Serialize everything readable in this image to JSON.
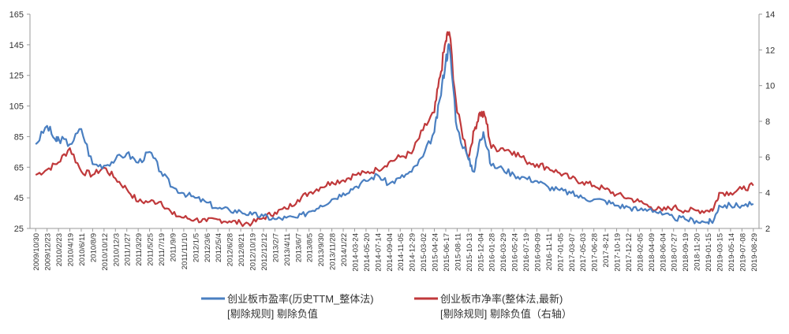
{
  "chart_data": {
    "type": "line",
    "title": "",
    "xlabel": "",
    "ylabel": "",
    "grid": false,
    "legend_position": "bottom",
    "ylim_left": [
      25,
      165
    ],
    "yticks_left": [
      25,
      45,
      65,
      85,
      105,
      125,
      145,
      165
    ],
    "ylim_right": [
      2,
      14
    ],
    "yticks_right": [
      2,
      4,
      6,
      8,
      10,
      12,
      14
    ],
    "x_tick_labels": [
      "2009/10/30",
      "2009/12/23",
      "2010/2/23",
      "2010/4/19",
      "2010/6/11",
      "2010/8/9",
      "2010/10/12",
      "2010/12/3",
      "2011/1/27",
      "2011/3/29",
      "2011/5/25",
      "2011/7/19",
      "2011/9/9",
      "2011/11/10",
      "2012/1/5",
      "2012/3/6",
      "2012/5/4",
      "2012/6/28",
      "2012/8/21",
      "2012/10/19",
      "2012/12/12",
      "2013/2/7",
      "2013/4/11",
      "2013/6/7",
      "2013/8/5",
      "2013/9/30",
      "2013/11/28",
      "2014/1/22",
      "2014-03-24",
      "2014-05-20",
      "2014-07-14",
      "2014-09-04",
      "2014-11-05",
      "2014-12-29",
      "2015-03-02",
      "2015-04-24",
      "2015-06-17",
      "2015-08-11",
      "2015-10-13",
      "2015-12-04",
      "2016-01-28",
      "2016-03-29",
      "2016-05-24",
      "2016-07-19",
      "2016-09-09",
      "2016-11-11",
      "2017-01-05",
      "2017-03-07",
      "2017-05-03",
      "2017-06-28",
      "2017-8-21",
      "2017-10-19",
      "2017-12-12",
      "2018-02-05",
      "2018-04-09",
      "2018-06-04",
      "2018-07-27",
      "2018-09-19",
      "2018-11-20",
      "2019-01-15",
      "2019-03-15",
      "2019-05-14",
      "2019-07-08",
      "2019-08-29"
    ],
    "series": [
      {
        "name": "创业板市盈率(历史TTM_整体法)",
        "name_line2": "[剔除规则] 剔除负值",
        "axis": "left",
        "color": "#4a7fc1",
        "x": [
          0,
          1,
          1.8,
          2,
          3,
          4,
          5,
          6,
          7,
          8,
          9,
          10,
          11,
          12,
          13,
          14,
          15,
          16,
          17,
          18,
          19,
          20,
          21,
          22,
          23,
          24,
          25,
          26,
          27,
          28,
          29,
          30,
          31,
          32,
          33,
          34,
          35,
          35.5,
          36,
          36.3,
          37,
          38,
          38.5,
          39,
          39.3,
          40,
          41,
          42,
          43,
          44,
          45,
          46,
          47,
          48,
          49,
          50,
          51,
          52,
          53,
          54,
          55,
          56,
          57,
          58,
          59,
          59.5,
          60,
          61,
          62,
          63
        ],
        "y": [
          80,
          92,
          82,
          84,
          80,
          90,
          67,
          66,
          70,
          74,
          68,
          75,
          62,
          52,
          48,
          45,
          42,
          38,
          37,
          36,
          34,
          33,
          31,
          32,
          32,
          36,
          40,
          44,
          48,
          52,
          56,
          60,
          54,
          58,
          62,
          72,
          88,
          110,
          135,
          145,
          90,
          70,
          62,
          83,
          88,
          66,
          64,
          60,
          58,
          56,
          52,
          50,
          48,
          45,
          44,
          43,
          40,
          39,
          37,
          38,
          34,
          32,
          31,
          30,
          29,
          30,
          40,
          40,
          40,
          41
        ]
      },
      {
        "name": "创业板市净率(整体法,最新)",
        "name_line2": "[剔除规则] 剔除负值（右轴）",
        "axis": "right",
        "color": "#c0393b",
        "x": [
          0,
          1,
          2,
          3,
          4,
          5,
          6,
          7,
          8,
          9,
          10,
          11,
          12,
          13,
          14,
          15,
          16,
          17,
          18,
          19,
          20,
          21,
          22,
          23,
          24,
          25,
          26,
          27,
          28,
          29,
          30,
          31,
          32,
          33,
          34,
          35,
          35.5,
          36,
          36.3,
          37,
          38,
          38.5,
          39,
          39.5,
          40,
          41,
          42,
          43,
          44,
          45,
          46,
          47,
          48,
          49,
          50,
          51,
          52,
          53,
          54,
          55,
          56,
          57,
          58,
          59,
          59.5,
          60,
          61,
          62,
          63
        ],
        "y": [
          5.0,
          5.3,
          5.7,
          6.5,
          5.2,
          5.0,
          5.4,
          4.8,
          4.2,
          3.5,
          3.5,
          3.5,
          2.8,
          2.6,
          2.5,
          2.4,
          2.5,
          2.4,
          2.3,
          2.3,
          2.6,
          2.9,
          3.1,
          3.6,
          4.0,
          4.3,
          4.6,
          4.7,
          5.0,
          5.1,
          5.3,
          5.7,
          6.0,
          6.2,
          7.5,
          8.5,
          10.5,
          12.5,
          13,
          8.5,
          6.0,
          7.5,
          8.5,
          8.2,
          6.5,
          6.5,
          6.3,
          5.8,
          5.6,
          5.4,
          5.1,
          4.8,
          4.6,
          4.4,
          4.2,
          3.9,
          3.7,
          3.5,
          3.2,
          3.0,
          3.2,
          3.0,
          3.0,
          3.0,
          3.1,
          4.0,
          4.0,
          4.2,
          4.4
        ]
      }
    ]
  }
}
